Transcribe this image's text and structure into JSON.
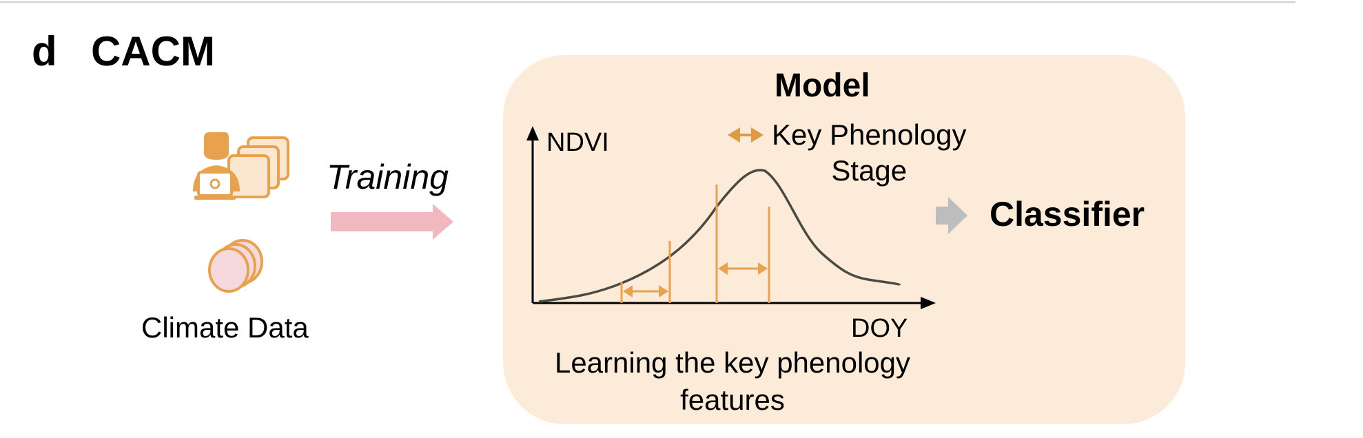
{
  "panel": {
    "letter": "d",
    "title": "CACM"
  },
  "inputs": {
    "expert_icon": "expert-with-documents-icon",
    "climate_icon": "climate-data-discs-icon",
    "climate_label": "Climate Data"
  },
  "training": {
    "label": "Training",
    "arrow_color": "#f2b8c0"
  },
  "model": {
    "title": "Model",
    "background": "#fbebd8",
    "legend": {
      "line1": "Key Phenology",
      "line2": "Stage",
      "icon": "double-arrow-icon",
      "color": "#e09a42"
    },
    "caption": "Learning the key phenology features"
  },
  "chart_data": {
    "type": "line",
    "xlabel": "DOY",
    "ylabel": "NDVI",
    "grid": false,
    "curve_color": "#4a4a40",
    "marker_color": "#eaa24e"
  },
  "output": {
    "label": "Classifier",
    "arrow_color": "#bdbdbd"
  }
}
